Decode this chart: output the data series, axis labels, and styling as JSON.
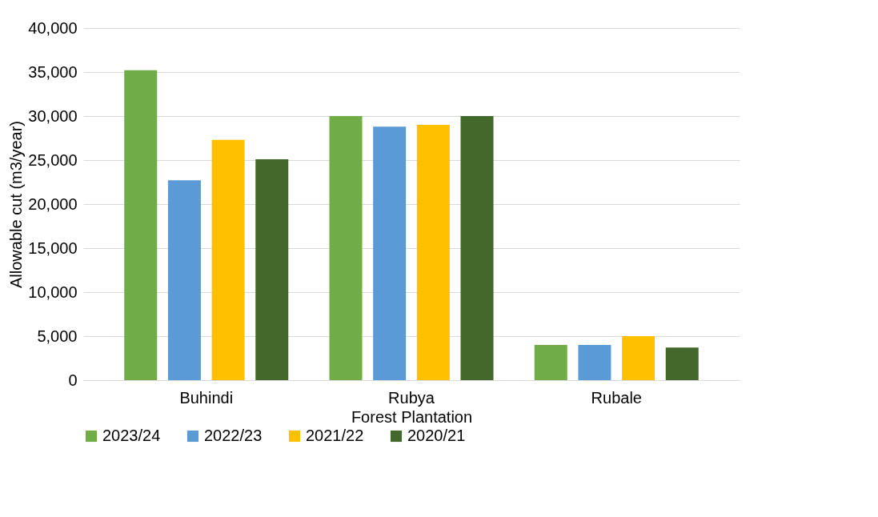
{
  "chart_data": {
    "type": "bar",
    "xlabel": "Forest Plantation",
    "ylabel": "Allowable cut  (m3/year)",
    "categories": [
      "Buhindi",
      "Rubya",
      "Rubale"
    ],
    "series": [
      {
        "name": "2023/24",
        "color": "#70ad47",
        "values": [
          35200,
          30000,
          4000
        ]
      },
      {
        "name": "2022/23",
        "color": "#5b9bd5",
        "values": [
          22700,
          28800,
          4000
        ]
      },
      {
        "name": "2021/22",
        "color": "#ffc000",
        "values": [
          27300,
          29000,
          5000
        ]
      },
      {
        "name": "2020/21",
        "color": "#43682b",
        "values": [
          25100,
          30000,
          3700
        ]
      }
    ],
    "ylim": [
      0,
      40000
    ],
    "yticks": [
      0,
      {
        "value": 5000,
        "label": "5,000"
      },
      {
        "value": 10000,
        "label": "10,000"
      },
      {
        "value": 15000,
        "label": "15,000"
      },
      {
        "value": 20000,
        "label": "20,000"
      },
      {
        "value": 25000,
        "label": "25,000"
      },
      {
        "value": 30000,
        "label": "30,000"
      },
      {
        "value": 35000,
        "label": "35,000"
      },
      {
        "value": 40000,
        "label": "40,000"
      }
    ],
    "grid": "y",
    "legend": "bottom"
  }
}
